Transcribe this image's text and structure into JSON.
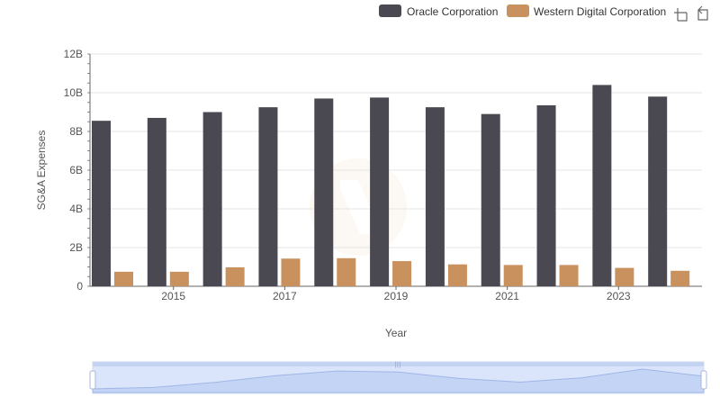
{
  "chart_data": {
    "type": "bar",
    "categories": [
      "2014",
      "2015",
      "2016",
      "2017",
      "2018",
      "2019",
      "2020",
      "2021",
      "2022",
      "2023",
      "2024"
    ],
    "x_tick_labels": [
      "2015",
      "2017",
      "2019",
      "2021",
      "2023"
    ],
    "series": [
      {
        "name": "Oracle Corporation",
        "color": "#4a4951",
        "values": [
          8.55,
          8.7,
          9.0,
          9.25,
          9.7,
          9.75,
          9.25,
          8.9,
          9.35,
          10.4,
          9.8
        ]
      },
      {
        "name": "Western Digital Corporation",
        "color": "#c9915d",
        "values": [
          0.75,
          0.75,
          0.98,
          1.43,
          1.45,
          1.3,
          1.13,
          1.1,
          1.1,
          0.95,
          0.8
        ]
      }
    ],
    "xlabel": "Year",
    "ylabel": "SG&A Expenses",
    "y_ticks": [
      0,
      2,
      4,
      6,
      8,
      10,
      12
    ],
    "y_tick_labels": [
      "0",
      "2B",
      "4B",
      "6B",
      "8B",
      "10B",
      "12B"
    ],
    "ylim": [
      0,
      12
    ],
    "grid": true,
    "legend_position": "top-right"
  },
  "toolbar": {
    "zoom_icon": "zoom-icon",
    "reset_icon": "reset-icon"
  },
  "datazoom": {
    "range_start": 0,
    "range_end": 100
  }
}
